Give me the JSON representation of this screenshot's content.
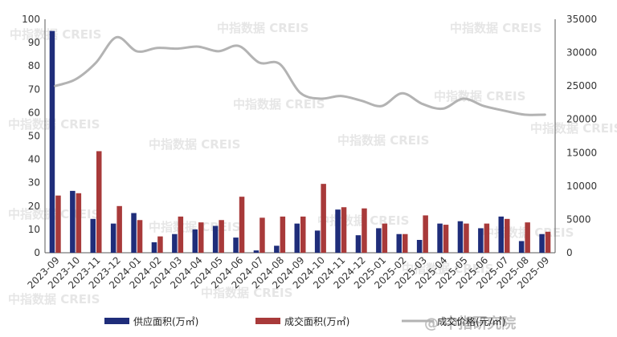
{
  "chart_data": {
    "type": "bar",
    "categories": [
      "2023-09",
      "2023-10",
      "2023-11",
      "2023-12",
      "2024-01",
      "2024-02",
      "2024-03",
      "2024-04",
      "2024-05",
      "2024-06",
      "2024-07",
      "2024-08",
      "2024-09",
      "2024-10",
      "2024-11",
      "2024-12",
      "2025-01",
      "2025-02",
      "2025-03",
      "2025-04",
      "2025-05",
      "2025-06",
      "2025-07",
      "2025-08",
      "2025-09"
    ],
    "series": [
      {
        "name": "供应面积(万㎡)",
        "kind": "bar",
        "axis": "left",
        "color": "#1f2d7a",
        "values": [
          95,
          26.5,
          14.5,
          12.5,
          17,
          4.5,
          8,
          10,
          11.5,
          6.5,
          1,
          3,
          12.5,
          9.5,
          18.5,
          7.5,
          10.5,
          8,
          5.5,
          12.5,
          13.5,
          10.5,
          15.5,
          5,
          8
        ]
      },
      {
        "name": "成交面积(万㎡)",
        "kind": "bar",
        "axis": "left",
        "color": "#a83a3a",
        "values": [
          24.5,
          25.5,
          43.5,
          20,
          14,
          7,
          15.5,
          13,
          14,
          24,
          15,
          15.5,
          15.5,
          29.5,
          19.5,
          19,
          12.5,
          8,
          16,
          12,
          12.5,
          12.5,
          14.5,
          13,
          9
        ]
      },
      {
        "name": "成交价格(元/㎡)",
        "kind": "line",
        "axis": "right",
        "color": "#b3b3b3",
        "values": [
          25000,
          26000,
          28500,
          32300,
          30200,
          30700,
          30600,
          30900,
          30200,
          31000,
          28500,
          28300,
          24000,
          23100,
          23500,
          22800,
          22000,
          23900,
          22300,
          21600,
          23100,
          22000,
          21300,
          20700,
          20700
        ]
      }
    ],
    "ylim_left": [
      0,
      100
    ],
    "yticks_left": [
      "0",
      "10",
      "20",
      "30",
      "40",
      "50",
      "60",
      "70",
      "80",
      "90",
      "100"
    ],
    "ylim_right": [
      0,
      35000
    ],
    "yticks_right": [
      "0",
      "5000",
      "10000",
      "15000",
      "20000",
      "25000",
      "30000",
      "35000"
    ],
    "grid": false,
    "legend_position": "bottom"
  },
  "watermarks": {
    "text": "中指数据 CREIS",
    "corner": "@ 中指研究院"
  }
}
